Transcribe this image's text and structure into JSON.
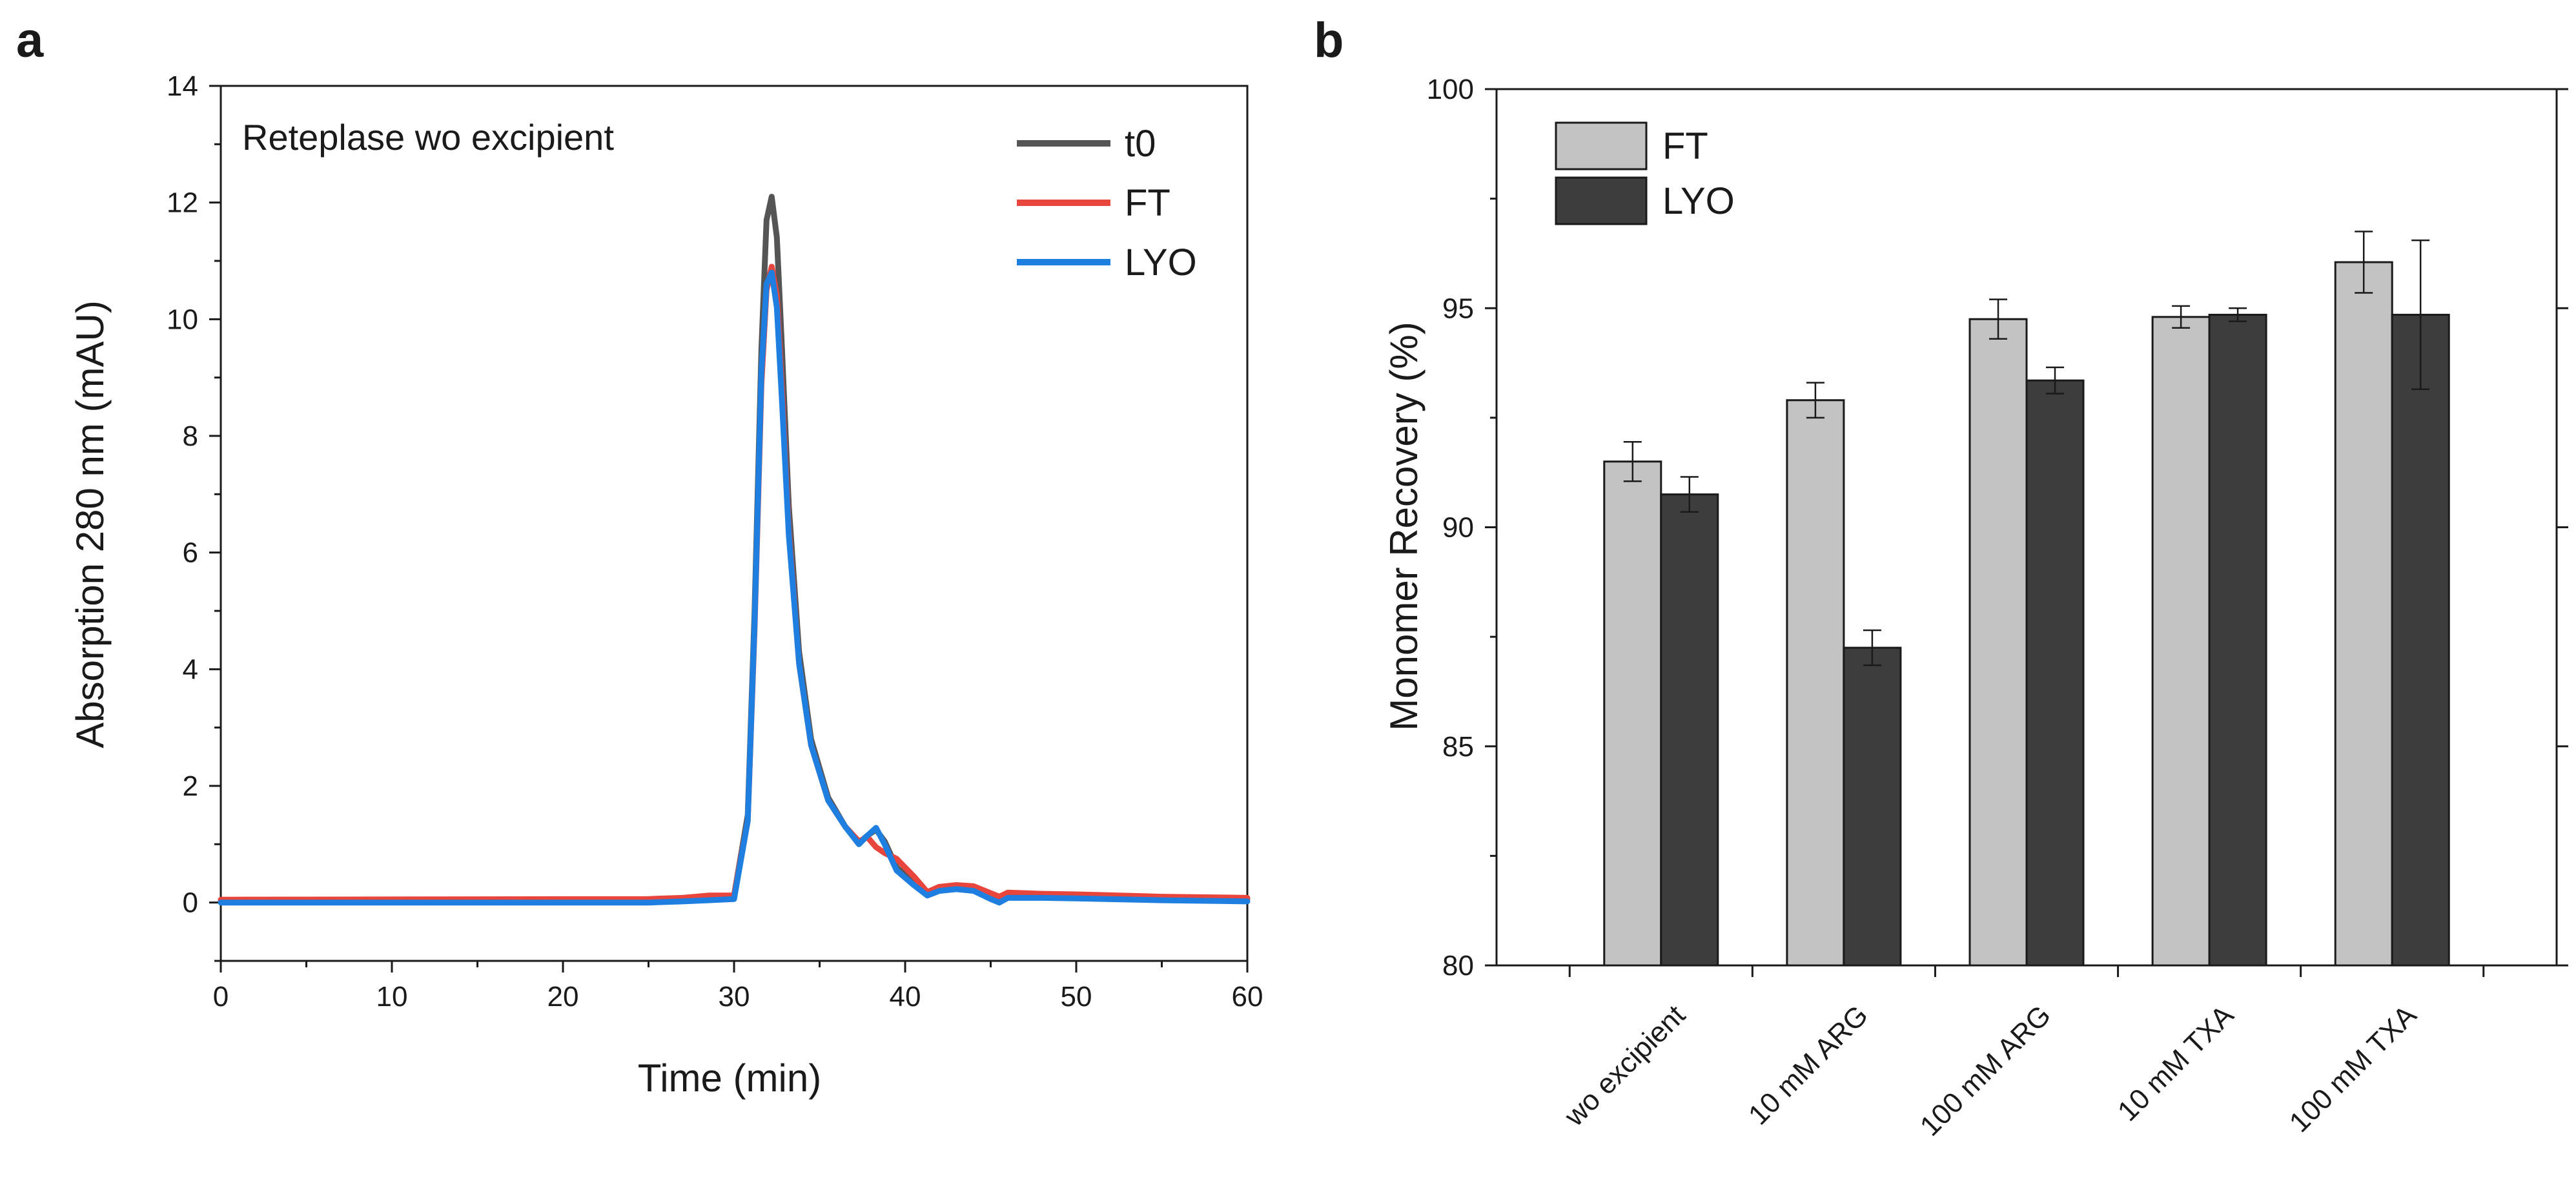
{
  "panels": {
    "a": {
      "letter": "a",
      "chart_data": {
        "type": "line",
        "annotation": "Reteplase wo excipient",
        "xlabel": "Time (min)",
        "ylabel": "Absorption 280 nm (mAU)",
        "xlim": [
          0,
          60
        ],
        "ylim": [
          -1,
          14
        ],
        "xticks": [
          0,
          10,
          20,
          30,
          40,
          50,
          60
        ],
        "yticks": [
          0,
          2,
          4,
          6,
          8,
          10,
          12,
          14
        ],
        "legend_position": "top-right",
        "series": [
          {
            "name": "t0",
            "color": "#555555",
            "x": [
              0,
              25,
              27,
              28.5,
              30,
              30.8,
              31.2,
              31.6,
              31.9,
              32.2,
              32.5,
              32.8,
              33.2,
              33.8,
              34.5,
              35.5,
              36.5,
              37.3,
              37.8,
              38.3,
              38.8,
              39.5,
              40.5,
              41.3,
              42,
              43,
              44,
              45,
              45.5,
              46,
              48,
              50,
              55,
              60
            ],
            "y": [
              0.02,
              0.03,
              0.06,
              0.09,
              0.12,
              1.5,
              5.0,
              9.5,
              11.7,
              12.1,
              11.4,
              9.5,
              6.8,
              4.3,
              2.8,
              1.8,
              1.3,
              1.02,
              1.15,
              1.25,
              1.05,
              0.6,
              0.35,
              0.15,
              0.25,
              0.28,
              0.26,
              0.12,
              0.06,
              0.14,
              0.13,
              0.12,
              0.08,
              0.06
            ]
          },
          {
            "name": "FT",
            "color": "#e8453c",
            "x": [
              0,
              25,
              27,
              28.5,
              30,
              30.8,
              31.2,
              31.6,
              31.9,
              32.2,
              32.5,
              32.8,
              33.2,
              33.8,
              34.5,
              35.5,
              36.5,
              37.3,
              37.8,
              38.3,
              38.8,
              39.5,
              40.5,
              41.3,
              42,
              43,
              44,
              45,
              45.5,
              46,
              48,
              50,
              55,
              60
            ],
            "y": [
              0.05,
              0.06,
              0.08,
              0.12,
              0.12,
              1.4,
              4.7,
              8.9,
              10.5,
              10.9,
              10.4,
              8.8,
              6.4,
              4.1,
              2.7,
              1.75,
              1.3,
              1.05,
              1.12,
              0.95,
              0.85,
              0.75,
              0.45,
              0.18,
              0.27,
              0.3,
              0.28,
              0.16,
              0.1,
              0.17,
              0.15,
              0.14,
              0.1,
              0.08
            ]
          },
          {
            "name": "LYO",
            "color": "#1f7fe0",
            "x": [
              0,
              25,
              27,
              28.5,
              30,
              30.8,
              31.2,
              31.6,
              31.9,
              32.2,
              32.5,
              32.8,
              33.2,
              33.8,
              34.5,
              35.5,
              36.5,
              37.3,
              37.8,
              38.3,
              38.8,
              39.5,
              40.5,
              41.3,
              42,
              43,
              44,
              45,
              45.5,
              46,
              48,
              50,
              55,
              60
            ],
            "y": [
              0.0,
              0.0,
              0.02,
              0.04,
              0.06,
              1.4,
              4.8,
              9.1,
              10.6,
              10.8,
              10.2,
              8.6,
              6.3,
              4.1,
              2.7,
              1.75,
              1.3,
              1.0,
              1.15,
              1.28,
              1.0,
              0.55,
              0.3,
              0.12,
              0.2,
              0.23,
              0.2,
              0.06,
              0.0,
              0.08,
              0.08,
              0.07,
              0.04,
              0.02
            ]
          }
        ]
      }
    },
    "b": {
      "letter": "b",
      "chart_data": {
        "type": "bar",
        "ylabel": "Monomer Recovery (%)",
        "ylim": [
          80,
          100
        ],
        "yticks": [
          80,
          85,
          90,
          95,
          100
        ],
        "categories": [
          "wo excipient",
          "10 mM ARG",
          "100 mM ARG",
          "10 mM TXA",
          "100 mM TXA"
        ],
        "legend_position": "top-left",
        "series": [
          {
            "name": "FT",
            "color": "#c3c3c3",
            "values": [
              91.5,
              92.9,
              94.75,
              94.8,
              96.05
            ],
            "errors": [
              0.45,
              0.4,
              0.45,
              0.25,
              0.7
            ]
          },
          {
            "name": "LYO",
            "color": "#3d3d3d",
            "values": [
              90.75,
              87.25,
              93.35,
              94.85,
              94.85
            ],
            "errors": [
              0.4,
              0.4,
              0.3,
              0.15,
              1.7
            ]
          }
        ]
      }
    }
  }
}
